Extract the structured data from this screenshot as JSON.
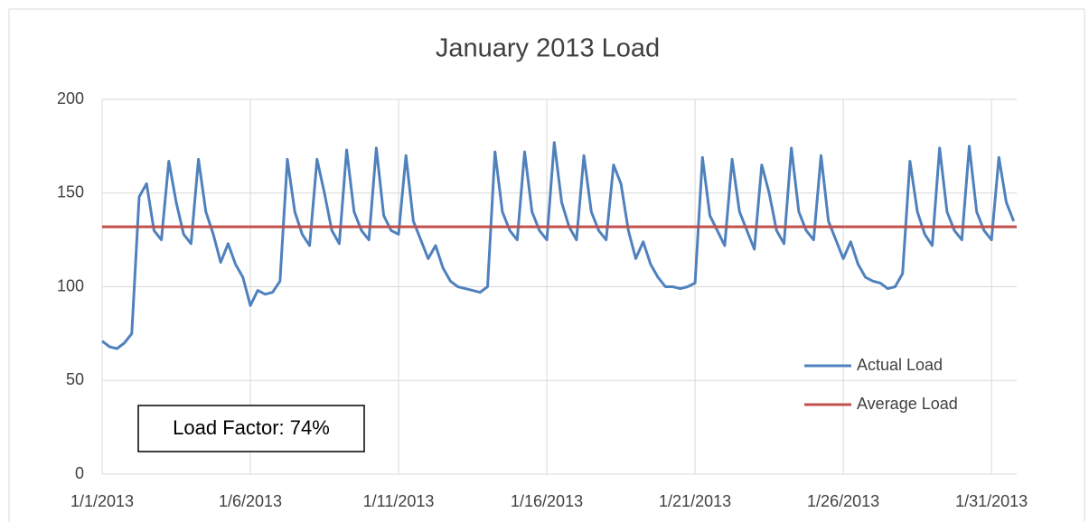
{
  "chart_data": {
    "type": "line",
    "title": "January 2013 Load",
    "x": [
      1,
      1.25,
      1.5,
      1.75,
      2,
      2.25,
      2.5,
      2.75,
      3,
      3.25,
      3.5,
      3.75,
      4,
      4.25,
      4.5,
      4.75,
      5,
      5.25,
      5.5,
      5.75,
      6,
      6.25,
      6.5,
      6.75,
      7,
      7.25,
      7.5,
      7.75,
      8,
      8.25,
      8.5,
      8.75,
      9,
      9.25,
      9.5,
      9.75,
      10,
      10.25,
      10.5,
      10.75,
      11,
      11.25,
      11.5,
      11.75,
      12,
      12.25,
      12.5,
      12.75,
      13,
      13.25,
      13.5,
      13.75,
      14,
      14.25,
      14.5,
      14.75,
      15,
      15.25,
      15.5,
      15.75,
      16,
      16.25,
      16.5,
      16.75,
      17,
      17.25,
      17.5,
      17.75,
      18,
      18.25,
      18.5,
      18.75,
      19,
      19.25,
      19.5,
      19.75,
      20,
      20.25,
      20.5,
      20.75,
      21,
      21.25,
      21.5,
      21.75,
      22,
      22.25,
      22.5,
      22.75,
      23,
      23.25,
      23.5,
      23.75,
      24,
      24.25,
      24.5,
      24.75,
      25,
      25.25,
      25.5,
      25.75,
      26,
      26.25,
      26.5,
      26.75,
      27,
      27.25,
      27.5,
      27.75,
      28,
      28.25,
      28.5,
      28.75,
      29,
      29.25,
      29.5,
      29.75,
      30,
      30.25,
      30.5,
      30.75,
      31,
      31.25,
      31.5,
      31.75
    ],
    "series": [
      {
        "name": "Actual Load",
        "color": "#4f81bd",
        "values": [
          71,
          68,
          67,
          70,
          75,
          148,
          155,
          130,
          125,
          167,
          145,
          128,
          123,
          168,
          140,
          128,
          113,
          123,
          112,
          105,
          90,
          98,
          96,
          97,
          103,
          168,
          140,
          128,
          122,
          168,
          150,
          130,
          123,
          173,
          140,
          130,
          125,
          174,
          138,
          130,
          128,
          170,
          135,
          125,
          115,
          122,
          110,
          103,
          100,
          99,
          98,
          97,
          100,
          172,
          140,
          130,
          125,
          172,
          140,
          130,
          125,
          177,
          145,
          132,
          125,
          170,
          140,
          130,
          125,
          165,
          155,
          130,
          115,
          124,
          112,
          105,
          100,
          100,
          99,
          100,
          102,
          169,
          138,
          130,
          122,
          168,
          140,
          130,
          120,
          165,
          150,
          130,
          123,
          174,
          140,
          130,
          125,
          170,
          135,
          125,
          115,
          124,
          112,
          105,
          103,
          102,
          99,
          100,
          107,
          167,
          140,
          128,
          122,
          174,
          140,
          130,
          125,
          175,
          140,
          130,
          125,
          169,
          145,
          135
        ]
      }
    ],
    "reference_lines": [
      {
        "name": "Average Load",
        "color": "#c0504d",
        "value": 132
      }
    ],
    "annotation": "Load Factor: 74%",
    "xlim": [
      1,
      31.85
    ],
    "xticks": [
      {
        "value": 1,
        "label": "1/1/2013"
      },
      {
        "value": 6,
        "label": "1/6/2013"
      },
      {
        "value": 11,
        "label": "1/11/2013"
      },
      {
        "value": 16,
        "label": "1/16/2013"
      },
      {
        "value": 21,
        "label": "1/21/2013"
      },
      {
        "value": 26,
        "label": "1/26/2013"
      },
      {
        "value": 31,
        "label": "1/31/2013"
      }
    ],
    "ylim": [
      0,
      200
    ],
    "yticks": [
      0,
      50,
      100,
      150,
      200
    ],
    "grid": true,
    "legend": "right"
  }
}
